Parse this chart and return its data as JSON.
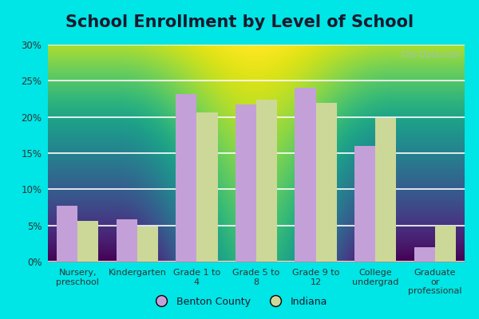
{
  "title": "School Enrollment by Level of School",
  "categories": [
    "Nursery,\npreschool",
    "Kindergarten",
    "Grade 1 to\n4",
    "Grade 5 to\n8",
    "Grade 9 to\n12",
    "College\nundergrad",
    "Graduate\nor\nprofessional"
  ],
  "benton_county": [
    7.7,
    5.8,
    23.2,
    21.7,
    24.0,
    16.0,
    2.0
  ],
  "indiana": [
    5.6,
    4.9,
    20.6,
    22.4,
    22.0,
    19.8,
    5.0
  ],
  "benton_color": "#c4a0d8",
  "indiana_color": "#ccd898",
  "background_outer": "#00e5e5",
  "background_inner_top": "#f5faf5",
  "background_inner_bottom": "#d0ecd0",
  "ylim": [
    0,
    30
  ],
  "yticks": [
    0,
    5,
    10,
    15,
    20,
    25,
    30
  ],
  "ytick_labels": [
    "0%",
    "5%",
    "10%",
    "15%",
    "20%",
    "25%",
    "30%"
  ],
  "legend_label_1": "Benton County",
  "legend_label_2": "Indiana",
  "bar_width": 0.35,
  "title_fontsize": 15,
  "watermark": "City-Data.com"
}
